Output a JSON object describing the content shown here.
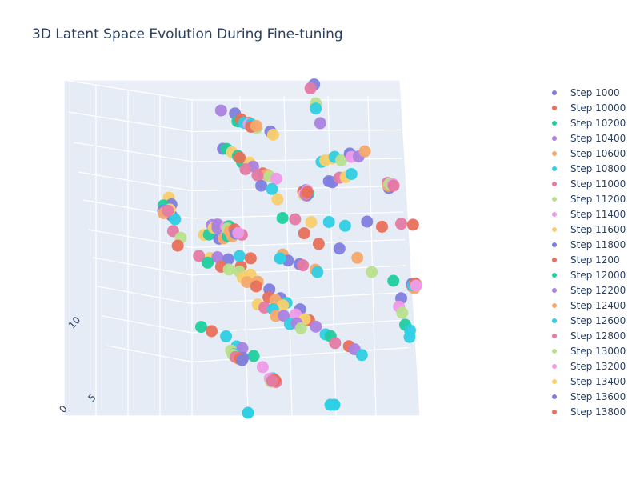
{
  "chart_data": {
    "type": "scatter3d",
    "title": "3D Latent Space Evolution During Fine-tuning",
    "axis_tick_labels": [
      "10",
      "5",
      "0"
    ],
    "legend_placement": "right",
    "scene_background": "#e5ecf6",
    "series": [
      {
        "name": "Step 1000",
        "color": "#7f7fdf"
      },
      {
        "name": "Step 10000",
        "color": "#e8705a"
      },
      {
        "name": "Step 10200",
        "color": "#1fcf9d"
      },
      {
        "name": "Step 10400",
        "color": "#ab82e0"
      },
      {
        "name": "Step 10600",
        "color": "#f5a96c"
      },
      {
        "name": "Step 10800",
        "color": "#2fcfe4"
      },
      {
        "name": "Step 11000",
        "color": "#e57aa4"
      },
      {
        "name": "Step 11200",
        "color": "#b8e08c"
      },
      {
        "name": "Step 11400",
        "color": "#ee9be8"
      },
      {
        "name": "Step 11600",
        "color": "#f8cf6c"
      },
      {
        "name": "Step 11800",
        "color": "#7f7fdf"
      },
      {
        "name": "Step 1200",
        "color": "#e8705a"
      },
      {
        "name": "Step 12000",
        "color": "#1fcf9d"
      },
      {
        "name": "Step 12200",
        "color": "#ab82e0"
      },
      {
        "name": "Step 12400",
        "color": "#f5a96c"
      },
      {
        "name": "Step 12600",
        "color": "#2fcfe4"
      },
      {
        "name": "Step 12800",
        "color": "#e57aa4"
      },
      {
        "name": "Step 13000",
        "color": "#b8e08c"
      },
      {
        "name": "Step 13200",
        "color": "#ee9be8"
      },
      {
        "name": "Step 13400",
        "color": "#f8cf6c"
      },
      {
        "name": "Step 13600",
        "color": "#7f7fdf"
      },
      {
        "name": "Step 13800",
        "color": "#e8705a"
      }
    ]
  }
}
